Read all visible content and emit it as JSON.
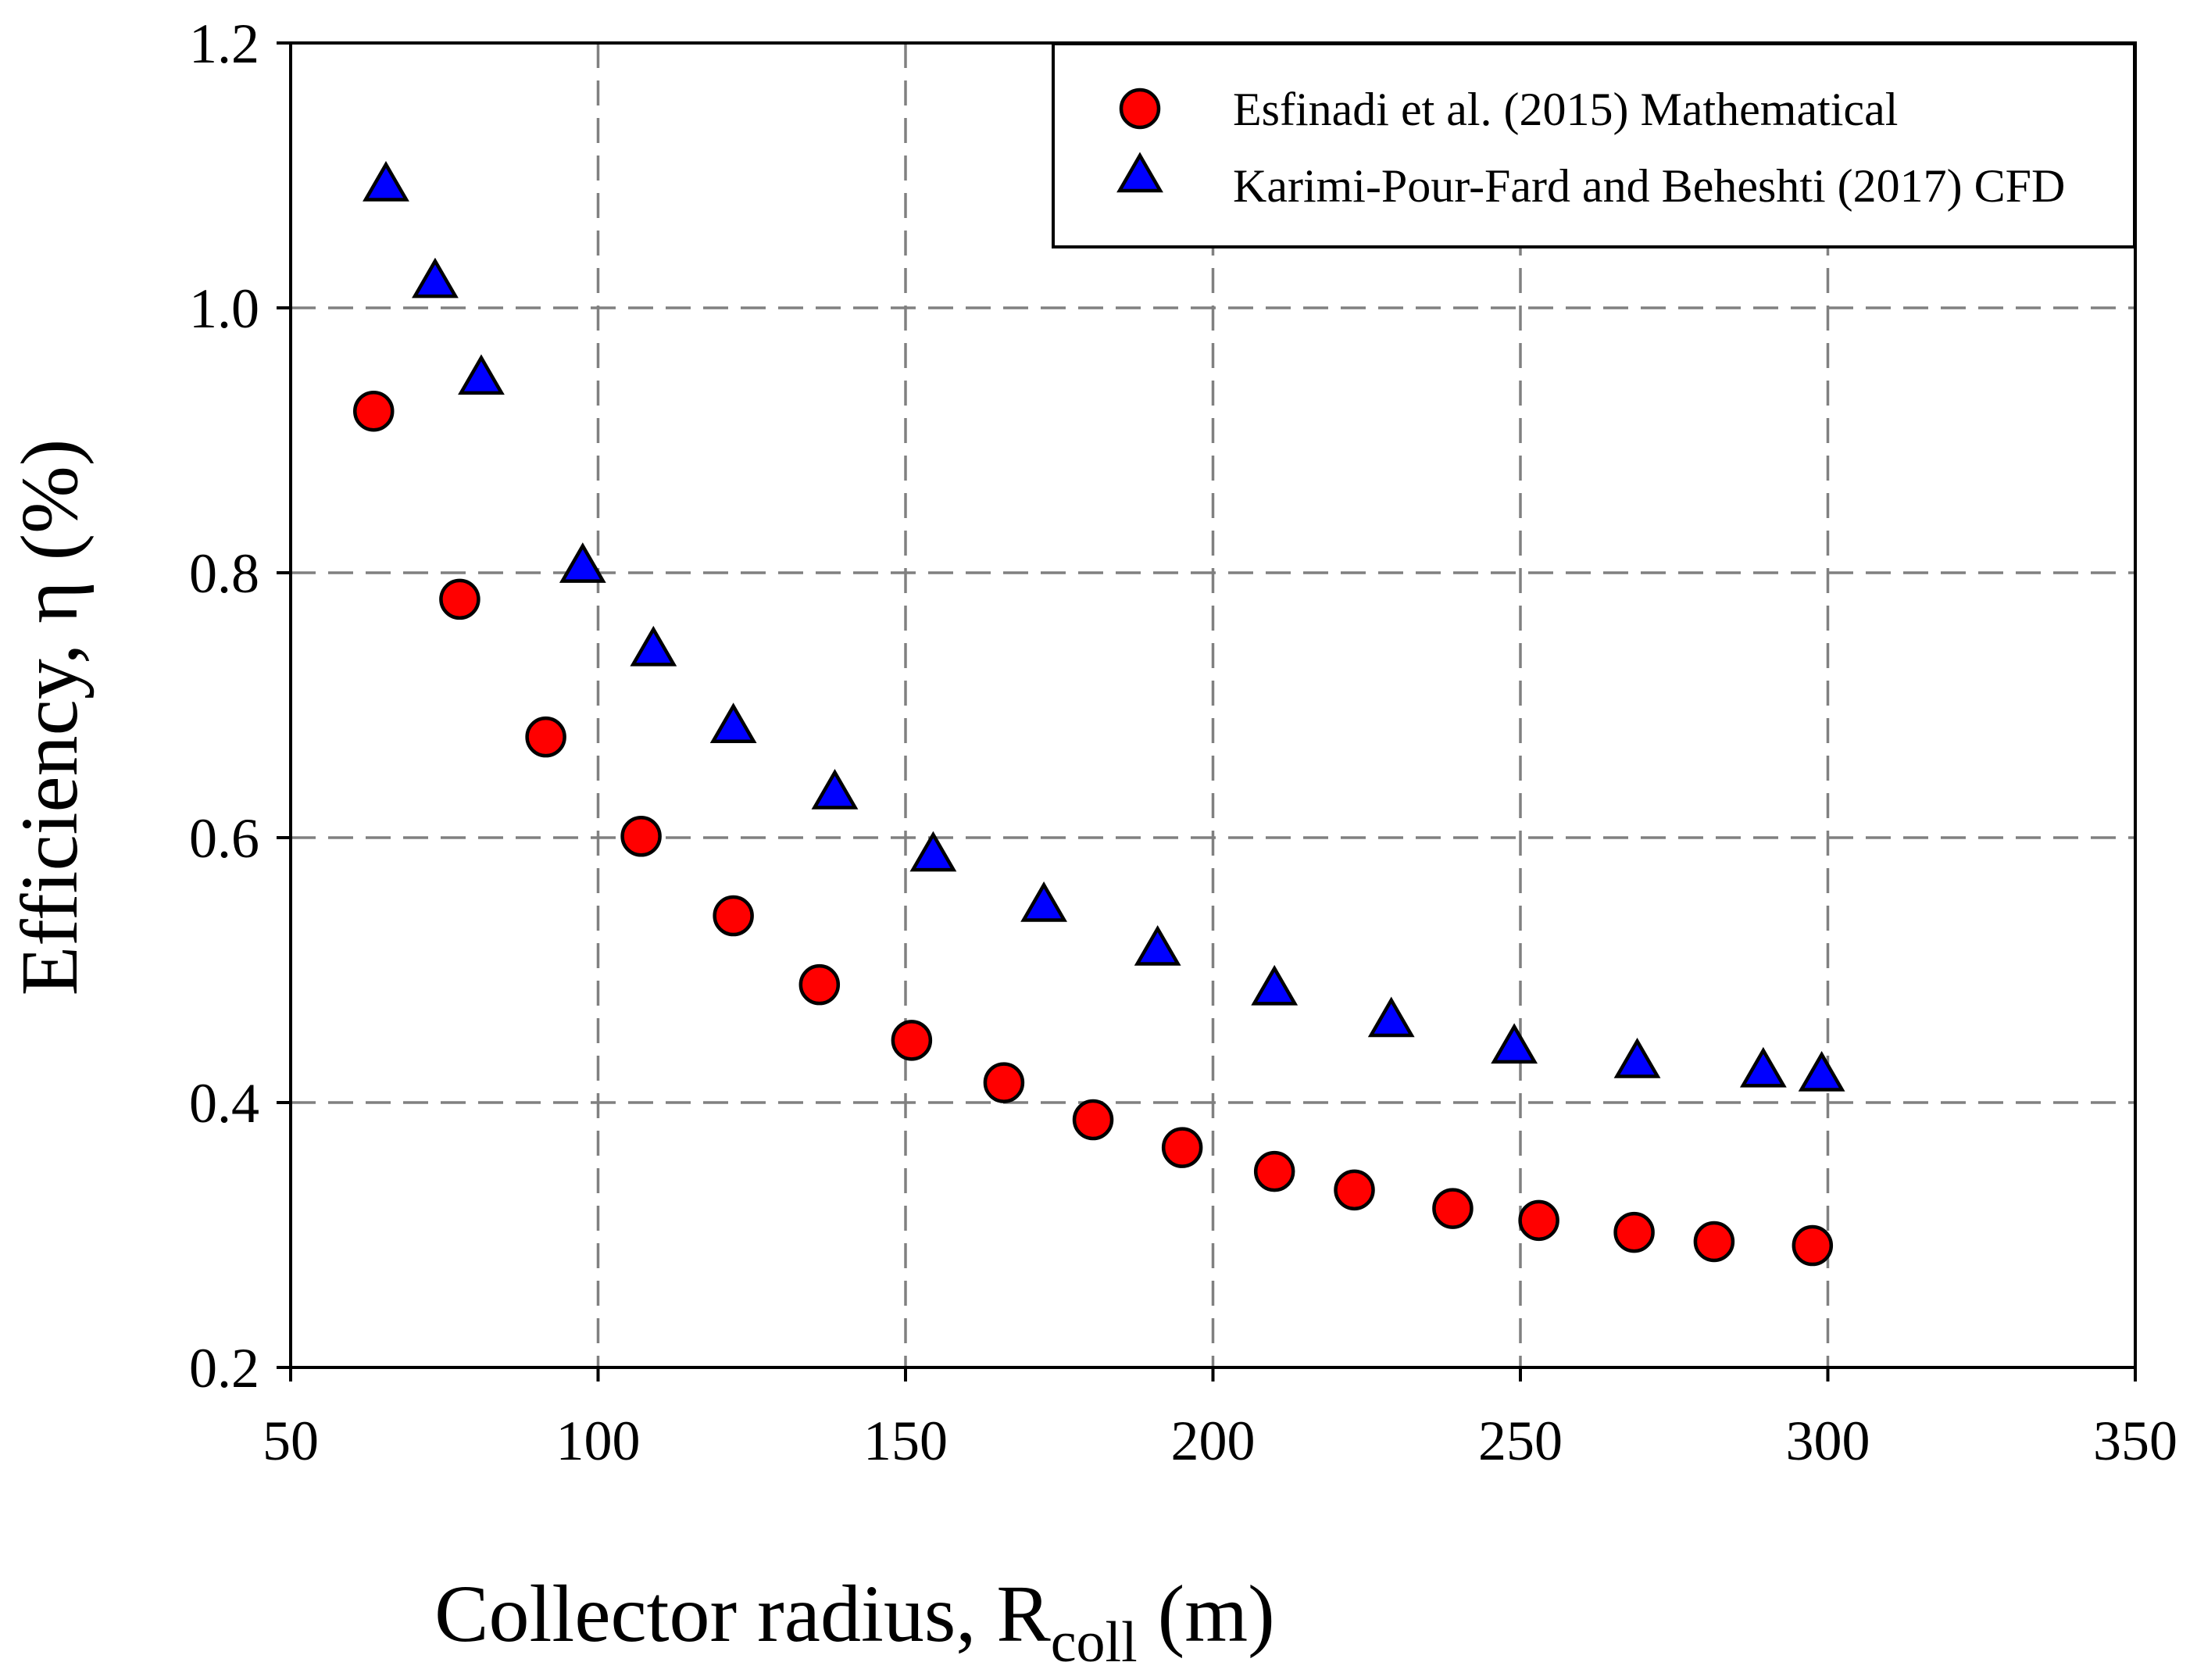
{
  "chart_data": {
    "type": "scatter",
    "xlabel_main": "Collector radius, R",
    "xlabel_sub": "coll",
    "xlabel_unit": "(m)",
    "ylabel": "Efficiency, η (%)",
    "xlim": [
      50,
      350
    ],
    "ylim": [
      0.2,
      1.2
    ],
    "xticks": [
      50,
      100,
      150,
      200,
      250,
      300,
      350
    ],
    "xtick_labels": [
      "50",
      "100",
      "150",
      "200",
      "250",
      "300",
      "350"
    ],
    "yticks": [
      0.2,
      0.4,
      0.6,
      0.8,
      1.0,
      1.2
    ],
    "ytick_labels": [
      "0.2",
      "0.4",
      "0.6",
      "0.8",
      "1.0",
      "1.2"
    ],
    "grid": true,
    "legend_position": "top-right",
    "series": [
      {
        "name": "Esfinadi et al. (2015) Mathematical",
        "marker": "circle",
        "color": "#ff0000",
        "x": [
          63.5,
          77.5,
          91.5,
          107,
          122,
          136,
          151,
          166,
          180.5,
          195,
          210,
          223,
          239,
          253,
          268.5,
          281.5,
          297.5
        ],
        "y": [
          0.922,
          0.78,
          0.676,
          0.601,
          0.541,
          0.489,
          0.447,
          0.415,
          0.387,
          0.366,
          0.348,
          0.334,
          0.32,
          0.311,
          0.302,
          0.295,
          0.292
        ]
      },
      {
        "name": "Karimi-Pour-Fard and Beheshti (2017) CFD",
        "marker": "triangle",
        "color": "#0000ff",
        "x": [
          65.5,
          73.5,
          81,
          97.5,
          109,
          122,
          138.5,
          154.5,
          172.5,
          191,
          210,
          229,
          249,
          269,
          289.5,
          299
        ],
        "y": [
          1.09,
          1.017,
          0.944,
          0.802,
          0.739,
          0.681,
          0.631,
          0.584,
          0.546,
          0.513,
          0.483,
          0.459,
          0.439,
          0.428,
          0.421,
          0.418
        ]
      }
    ]
  }
}
